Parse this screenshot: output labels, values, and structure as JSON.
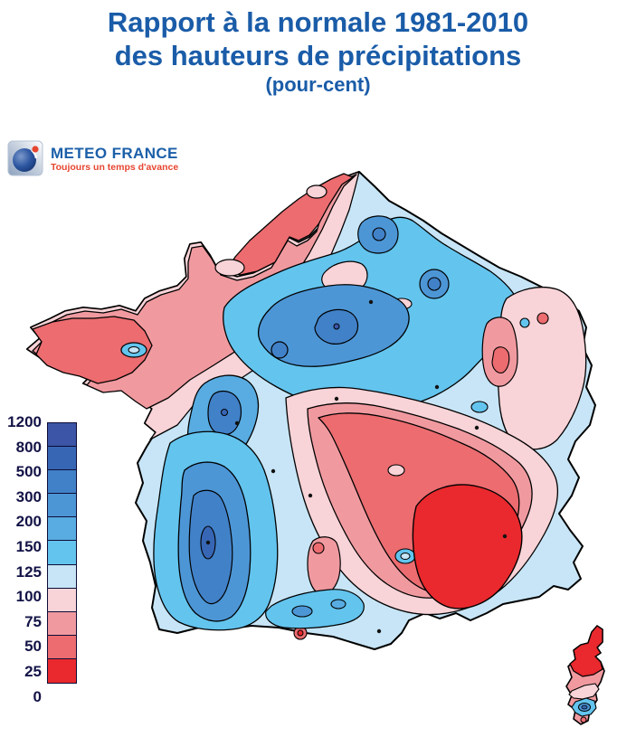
{
  "title": {
    "line1": "Rapport à la normale 1981-2010",
    "line2": "des hauteurs de précipitations",
    "line3": "(pour-cent)",
    "color": "#1A5CA8"
  },
  "logo": {
    "name": "METEO FRANCE",
    "tagline": "Toujours un temps d'avance",
    "name_color": "#1B5FA9",
    "tagline_color": "#E6452F"
  },
  "legend": {
    "values": [
      "1200",
      "800",
      "500",
      "300",
      "200",
      "150",
      "125",
      "100",
      "75",
      "50",
      "25",
      "0"
    ],
    "colors": [
      "#3C55A6",
      "#3766B5",
      "#4181C8",
      "#4D96D6",
      "#58ACE2",
      "#63C4EE",
      "#C7E5F6",
      "#F8D3D7",
      "#F09AA0",
      "#EC6C70",
      "#E9292E"
    ],
    "label_color": "#131347",
    "border_color": "#0D0D35"
  },
  "map": {
    "outline_color": "#000000",
    "sea_color": "#FFFFFF"
  },
  "chart_data": {
    "type": "filled_contour_map",
    "title": "Rapport à la normale 1981-2010 des hauteurs de précipitations (pour-cent)",
    "region": "France métropolitaine et Corse",
    "units": "percent of 1981-2010 normal precipitation",
    "scale_breaks": [
      0,
      25,
      50,
      75,
      100,
      125,
      150,
      200,
      300,
      500,
      800,
      1200
    ],
    "scale_colors_low_to_high": [
      "#E9292E",
      "#EC6C70",
      "#F09AA0",
      "#F8D3D7",
      "#C7E5F6",
      "#63C4EE",
      "#58ACE2",
      "#4D96D6",
      "#4181C8",
      "#3766B5",
      "#3C55A6"
    ],
    "legend_position": "left",
    "readings": [
      {
        "area": "Bretagne / Normandie / Nord (côte nord-ouest)",
        "value_range": "25-75"
      },
      {
        "area": "Bassin parisien / Bourgogne (centre-nord)",
        "value_range": "125-500"
      },
      {
        "area": "Sud-Ouest (Aquitaine)",
        "value_range": "150-800"
      },
      {
        "area": "Centre-sud / moyenne vallée du Rhône",
        "value_range": "25-75"
      },
      {
        "area": "Provence (sud-est)",
        "value_range": "0-25"
      },
      {
        "area": "Alsace / extrême est",
        "value_range": "50-100"
      },
      {
        "area": "Nord de la Corse",
        "value_range": "0-25"
      },
      {
        "area": "Sud de la Corse",
        "value_range": "100-300"
      }
    ]
  }
}
